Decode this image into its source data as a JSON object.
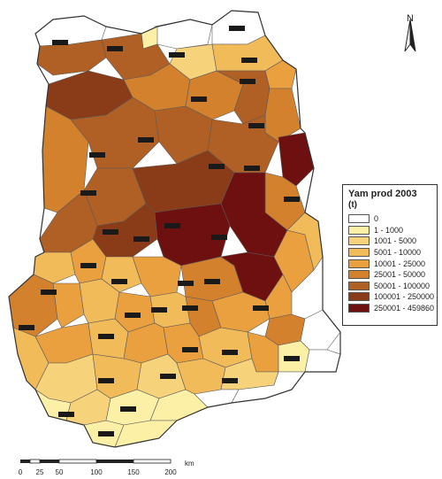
{
  "legend": {
    "title": "Yam prod 2003",
    "unit": "(t)",
    "classes": [
      {
        "label": "0",
        "color": "#ffffff"
      },
      {
        "label": "1 - 1000",
        "color": "#fbf0a6"
      },
      {
        "label": "1001 - 5000",
        "color": "#f6d27a"
      },
      {
        "label": "5001 - 10000",
        "color": "#f2bb5a"
      },
      {
        "label": "10001 - 25000",
        "color": "#eaa03e"
      },
      {
        "label": "25001 - 50000",
        "color": "#d4812e"
      },
      {
        "label": "50001 - 100000",
        "color": "#b06024"
      },
      {
        "label": "100001 - 250000",
        "color": "#8a3c18"
      },
      {
        "label": "250001 - 459860",
        "color": "#6e1010"
      }
    ]
  },
  "north_arrow": {
    "letter": "N"
  },
  "scale_bar": {
    "ticks": [
      "0",
      "25",
      "50",
      "100",
      "150",
      "200"
    ],
    "unit": "km"
  }
}
